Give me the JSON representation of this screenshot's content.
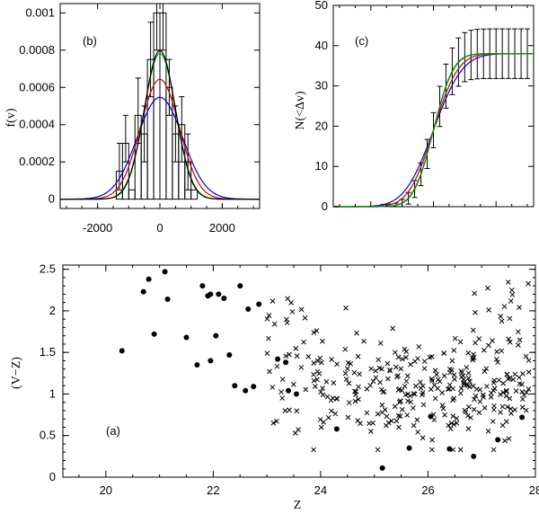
{
  "chart_data": [
    {
      "id": "b",
      "type": "histogram-with-gaussian-fits",
      "panel_label": "(b)",
      "xlabel": "",
      "ylabel": "f(v)",
      "xlim": [
        -3200,
        3200
      ],
      "ylim": [
        -5e-05,
        0.00105
      ],
      "xticks": [
        -2000,
        0,
        2000
      ],
      "xtick_labels": [
        "-2000",
        "0",
        "2000"
      ],
      "yticks": [
        0,
        0.0002,
        0.0004,
        0.0006,
        0.0008,
        0.001
      ],
      "ytick_labels": [
        "0",
        "0.0002",
        "0.0004",
        "0.0006",
        "0.0008",
        "0.001"
      ],
      "bin_width": 200,
      "histogram": [
        {
          "x0": -1600,
          "x1": -1400,
          "value": 0
        },
        {
          "x0": -1400,
          "x1": -1200,
          "value": 0.00015
        },
        {
          "x0": -1200,
          "x1": -1000,
          "value": 0.0003
        },
        {
          "x0": -1000,
          "x1": -800,
          "value": 5e-05
        },
        {
          "x0": -800,
          "x1": -600,
          "value": 0.00045
        },
        {
          "x0": -600,
          "x1": -400,
          "value": 0.00035
        },
        {
          "x0": -400,
          "x1": -200,
          "value": 0.00075
        },
        {
          "x0": -200,
          "x1": 0,
          "value": 0.001
        },
        {
          "x0": 0,
          "x1": 200,
          "value": 0.001
        },
        {
          "x0": 200,
          "x1": 400,
          "value": 0.0006
        },
        {
          "x0": 400,
          "x1": 600,
          "value": 0.00035
        },
        {
          "x0": 600,
          "x1": 800,
          "value": 0.0004
        },
        {
          "x0": 800,
          "x1": 1000,
          "value": 0.0002
        },
        {
          "x0": 1000,
          "x1": 1200,
          "value": 5e-05
        },
        {
          "x0": 1200,
          "x1": 1400,
          "value": 0
        }
      ],
      "error_bars": [
        {
          "x": -1300,
          "lo": 5e-05,
          "hi": 0.0003
        },
        {
          "x": -1100,
          "lo": 0.0002,
          "hi": 0.00045
        },
        {
          "x": -700,
          "lo": 0.0003,
          "hi": 0.00065
        },
        {
          "x": -500,
          "lo": 0.0002,
          "hi": 0.0005
        },
        {
          "x": -300,
          "lo": 0.00055,
          "hi": 0.00095
        },
        {
          "x": -100,
          "lo": 0.0008,
          "hi": 0.00105
        },
        {
          "x": 100,
          "lo": 0.0008,
          "hi": 0.00105
        },
        {
          "x": 300,
          "lo": 0.00045,
          "hi": 0.00075
        },
        {
          "x": 500,
          "lo": 0.0002,
          "hi": 0.0005
        },
        {
          "x": 700,
          "lo": 0.0002,
          "hi": 0.00055
        },
        {
          "x": 900,
          "lo": 5e-05,
          "hi": 0.00035
        }
      ],
      "series": [
        {
          "name": "blue",
          "color": "#0000cc",
          "mean": 0,
          "sigma": 730
        },
        {
          "name": "red",
          "color": "#cc0000",
          "mean": 0,
          "sigma": 620
        },
        {
          "name": "green",
          "color": "#00aa00",
          "mean": 0,
          "sigma": 510
        },
        {
          "name": "black",
          "color": "#000000",
          "mean": 0,
          "sigma": 500
        }
      ]
    },
    {
      "id": "c",
      "type": "cumulative-distribution",
      "panel_label": "(c)",
      "xlabel": "",
      "ylabel": "N(<Δv)",
      "xlim": [
        -3200,
        3200
      ],
      "ylim": [
        0,
        50
      ],
      "yticks": [
        0,
        10,
        20,
        30,
        40,
        50
      ],
      "ytick_labels": [
        "0",
        "10",
        "20",
        "30",
        "40",
        "50"
      ],
      "total": 38,
      "error_bar_x": [
        -1600,
        -1400,
        -1200,
        -1000,
        -800,
        -600,
        -400,
        -200,
        0,
        200,
        400,
        600,
        800,
        1000,
        1200,
        1400,
        1600,
        1800,
        2000,
        2200,
        2400,
        2600,
        2800,
        3000
      ],
      "error_bar_halfwidth_sqrt_scale": 1.0,
      "series": [
        {
          "name": "black",
          "color": "#000000",
          "mean": 0,
          "sigma": 500
        },
        {
          "name": "blue",
          "color": "#0000cc",
          "mean": 0,
          "sigma": 730
        },
        {
          "name": "red",
          "color": "#cc0000",
          "mean": 0,
          "sigma": 620
        },
        {
          "name": "green",
          "color": "#00aa00",
          "mean": 0,
          "sigma": 510
        }
      ]
    },
    {
      "id": "a",
      "type": "scatter",
      "panel_label": "(a)",
      "xlabel": "Z",
      "ylabel": "(V−Z)",
      "xlim": [
        19.2,
        28
      ],
      "ylim": [
        0,
        2.55
      ],
      "xticks": [
        20,
        22,
        24,
        26,
        28
      ],
      "xtick_labels": [
        "20",
        "22",
        "24",
        "26",
        "28"
      ],
      "yticks": [
        0,
        0.5,
        1,
        1.5,
        2,
        2.5
      ],
      "ytick_labels": [
        "0",
        "0.5",
        "1",
        "1.5",
        "2",
        "2.5"
      ],
      "series": [
        {
          "name": "dots",
          "marker": "filled-circle",
          "points": [
            [
              20.3,
              1.52
            ],
            [
              20.7,
              2.23
            ],
            [
              20.8,
              2.38
            ],
            [
              20.9,
              1.72
            ],
            [
              21.1,
              2.47
            ],
            [
              21.15,
              2.14
            ],
            [
              21.5,
              1.68
            ],
            [
              21.7,
              1.35
            ],
            [
              21.8,
              2.3
            ],
            [
              21.9,
              2.18
            ],
            [
              21.95,
              2.2
            ],
            [
              21.95,
              1.4
            ],
            [
              22.05,
              1.7
            ],
            [
              22.1,
              2.2
            ],
            [
              22.2,
              2.15
            ],
            [
              22.3,
              1.47
            ],
            [
              22.4,
              1.1
            ],
            [
              22.5,
              2.3
            ],
            [
              22.6,
              1.04
            ],
            [
              22.65,
              2.02
            ],
            [
              22.75,
              1.09
            ],
            [
              22.85,
              2.08
            ],
            [
              23.2,
              1.42
            ],
            [
              23.35,
              1.38
            ],
            [
              23.4,
              1.04
            ],
            [
              23.55,
              1.0
            ],
            [
              24.3,
              0.58
            ],
            [
              25.15,
              0.11
            ],
            [
              25.65,
              0.35
            ],
            [
              26.05,
              0.73
            ],
            [
              26.4,
              0.34
            ],
            [
              26.85,
              0.25
            ],
            [
              27.3,
              0.45
            ],
            [
              27.75,
              0.72
            ]
          ]
        },
        {
          "name": "crosses",
          "marker": "x",
          "generator": {
            "seed": 7,
            "count": 340,
            "x_range": [
              23.0,
              27.9
            ],
            "y_mean": 1.05,
            "y_sd": 0.32,
            "y_min": 0.33,
            "y_max": 2.35
          }
        }
      ]
    }
  ]
}
